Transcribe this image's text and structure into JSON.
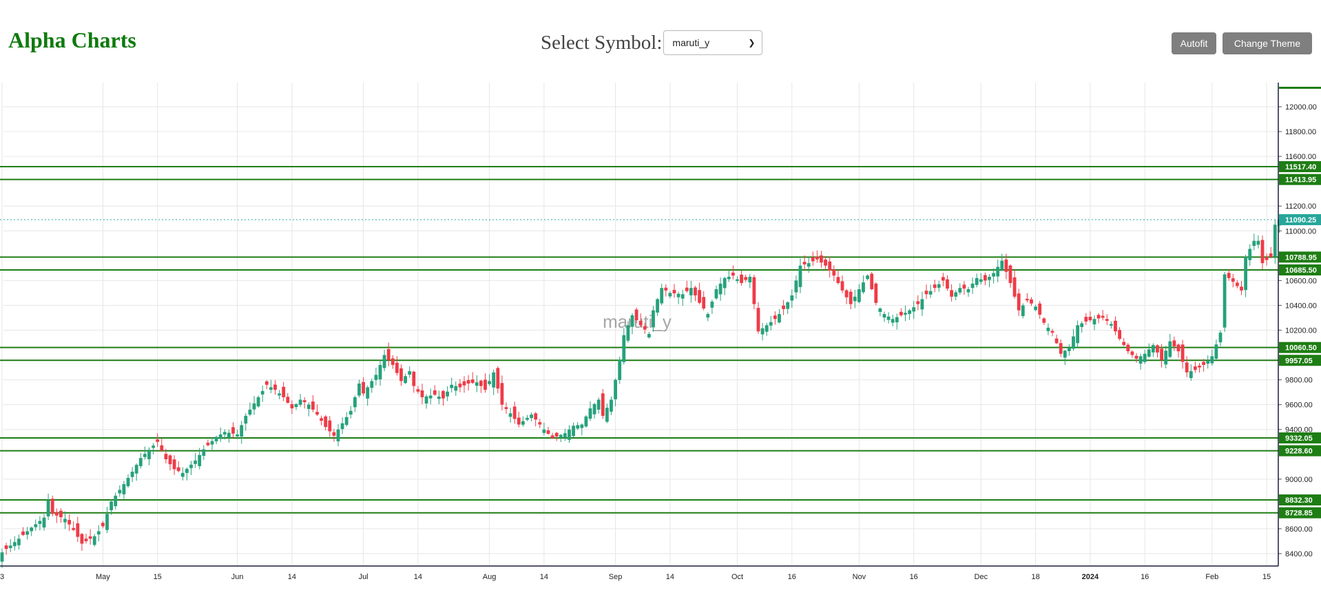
{
  "header": {
    "title": "Alpha Charts",
    "select_label": "Select Symbol:",
    "selected_symbol": "maruti_y",
    "autofit_label": "Autofit",
    "theme_label": "Change Theme"
  },
  "colors": {
    "up": "#26a17b",
    "down": "#ef3b47",
    "level_line": "#1e7d14",
    "last_price": "#26a69a",
    "title": "#0e7a0d"
  },
  "chart_data": {
    "type": "candlestick",
    "watermark": "maruti_y",
    "y_range": [
      8300,
      12150
    ],
    "y_ticks": [
      {
        "value": 12000,
        "label": "12000.00"
      },
      {
        "value": 11800,
        "label": "11800.00"
      },
      {
        "value": 11600,
        "label": "11600.00"
      },
      {
        "value": 11200,
        "label": "11200.00"
      },
      {
        "value": 11000,
        "label": "11000.00"
      },
      {
        "value": 10600,
        "label": "10600.00"
      },
      {
        "value": 10400,
        "label": "10400.00"
      },
      {
        "value": 10200,
        "label": "10200.00"
      },
      {
        "value": 9800,
        "label": "9800.00"
      },
      {
        "value": 9600,
        "label": "9600.00"
      },
      {
        "value": 9400,
        "label": "9400.00"
      },
      {
        "value": 9000,
        "label": "9000.00"
      },
      {
        "value": 8600,
        "label": "8600.00"
      },
      {
        "value": 8400,
        "label": "8400.00"
      }
    ],
    "x_ticks": [
      {
        "index": 0,
        "label": "3",
        "bold": false
      },
      {
        "index": 24,
        "label": "May",
        "bold": false
      },
      {
        "index": 37,
        "label": "15",
        "bold": false
      },
      {
        "index": 56,
        "label": "Jun",
        "bold": false
      },
      {
        "index": 69,
        "label": "14",
        "bold": false
      },
      {
        "index": 86,
        "label": "Jul",
        "bold": false
      },
      {
        "index": 99,
        "label": "14",
        "bold": false
      },
      {
        "index": 116,
        "label": "Aug",
        "bold": false
      },
      {
        "index": 129,
        "label": "14",
        "bold": false
      },
      {
        "index": 146,
        "label": "Sep",
        "bold": false
      },
      {
        "index": 159,
        "label": "14",
        "bold": false
      },
      {
        "index": 175,
        "label": "Oct",
        "bold": false
      },
      {
        "index": 188,
        "label": "16",
        "bold": false
      },
      {
        "index": 204,
        "label": "Nov",
        "bold": false
      },
      {
        "index": 217,
        "label": "16",
        "bold": false
      },
      {
        "index": 233,
        "label": "Dec",
        "bold": false
      },
      {
        "index": 246,
        "label": "18",
        "bold": false
      },
      {
        "index": 259,
        "label": "2024",
        "bold": true
      },
      {
        "index": 272,
        "label": "16",
        "bold": false
      },
      {
        "index": 288,
        "label": "Feb",
        "bold": false
      },
      {
        "index": 301,
        "label": "15",
        "bold": false
      }
    ],
    "level_lines": [
      11517.4,
      11413.95,
      10788.95,
      10685.5,
      10060.5,
      9957.05,
      9332.05,
      9228.6,
      8832.3,
      8728.85
    ],
    "level_labels": [
      "11517.40",
      "11413.95",
      "10788.95",
      "10685.50",
      "10060.50",
      "9957.05",
      "9332.05",
      "9228.60",
      "8832.30",
      "8728.85"
    ],
    "last_price": {
      "value": 11090.25,
      "label": "11090.25"
    },
    "keypoints": [
      [
        0,
        8410
      ],
      [
        4,
        8520
      ],
      [
        7,
        8610
      ],
      [
        10,
        8690
      ],
      [
        11,
        8830
      ],
      [
        12,
        8720
      ],
      [
        15,
        8680
      ],
      [
        17,
        8590
      ],
      [
        19,
        8480
      ],
      [
        22,
        8540
      ],
      [
        24,
        8620
      ],
      [
        26,
        8820
      ],
      [
        29,
        8960
      ],
      [
        31,
        9060
      ],
      [
        33,
        9170
      ],
      [
        36,
        9270
      ],
      [
        37,
        9300
      ],
      [
        39,
        9160
      ],
      [
        41,
        9080
      ],
      [
        43,
        9050
      ],
      [
        46,
        9150
      ],
      [
        48,
        9240
      ],
      [
        51,
        9340
      ],
      [
        53,
        9380
      ],
      [
        56,
        9360
      ],
      [
        58,
        9510
      ],
      [
        61,
        9660
      ],
      [
        63,
        9760
      ],
      [
        65,
        9720
      ],
      [
        67,
        9660
      ],
      [
        69,
        9570
      ],
      [
        71,
        9640
      ],
      [
        73,
        9600
      ],
      [
        75,
        9520
      ],
      [
        77,
        9420
      ],
      [
        79,
        9350
      ],
      [
        81,
        9450
      ],
      [
        83,
        9550
      ],
      [
        85,
        9770
      ],
      [
        86,
        9690
      ],
      [
        89,
        9840
      ],
      [
        91,
        10000
      ],
      [
        93,
        9920
      ],
      [
        95,
        9790
      ],
      [
        97,
        9870
      ],
      [
        98,
        9750
      ],
      [
        100,
        9660
      ],
      [
        103,
        9680
      ],
      [
        105,
        9650
      ],
      [
        107,
        9760
      ],
      [
        109,
        9740
      ],
      [
        111,
        9770
      ],
      [
        113,
        9780
      ],
      [
        115,
        9720
      ],
      [
        117,
        9860
      ],
      [
        119,
        9600
      ],
      [
        121,
        9530
      ],
      [
        123,
        9440
      ],
      [
        126,
        9520
      ],
      [
        129,
        9400
      ],
      [
        131,
        9330
      ],
      [
        134,
        9370
      ],
      [
        136,
        9430
      ],
      [
        138,
        9440
      ],
      [
        140,
        9570
      ],
      [
        142,
        9640
      ],
      [
        143,
        9510
      ],
      [
        145,
        9640
      ],
      [
        147,
        9960
      ],
      [
        148,
        10160
      ],
      [
        150,
        10320
      ],
      [
        152,
        10240
      ],
      [
        154,
        10170
      ],
      [
        155,
        10360
      ],
      [
        157,
        10540
      ],
      [
        159,
        10500
      ],
      [
        162,
        10490
      ],
      [
        164,
        10540
      ],
      [
        166,
        10420
      ],
      [
        168,
        10330
      ],
      [
        170,
        10530
      ],
      [
        172,
        10620
      ],
      [
        174,
        10640
      ],
      [
        176,
        10580
      ],
      [
        178,
        10630
      ],
      [
        180,
        10190
      ],
      [
        182,
        10240
      ],
      [
        184,
        10290
      ],
      [
        186,
        10370
      ],
      [
        188,
        10480
      ],
      [
        190,
        10720
      ],
      [
        192,
        10740
      ],
      [
        194,
        10770
      ],
      [
        196,
        10720
      ],
      [
        198,
        10640
      ],
      [
        200,
        10520
      ],
      [
        202,
        10410
      ],
      [
        204,
        10530
      ],
      [
        206,
        10640
      ],
      [
        208,
        10420
      ],
      [
        210,
        10330
      ],
      [
        212,
        10290
      ],
      [
        214,
        10320
      ],
      [
        216,
        10360
      ],
      [
        218,
        10410
      ],
      [
        220,
        10490
      ],
      [
        222,
        10540
      ],
      [
        224,
        10600
      ],
      [
        226,
        10470
      ],
      [
        228,
        10540
      ],
      [
        230,
        10530
      ],
      [
        232,
        10620
      ],
      [
        234,
        10600
      ],
      [
        236,
        10660
      ],
      [
        238,
        10760
      ],
      [
        240,
        10580
      ],
      [
        242,
        10360
      ],
      [
        244,
        10440
      ],
      [
        246,
        10390
      ],
      [
        248,
        10260
      ],
      [
        250,
        10180
      ],
      [
        252,
        10010
      ],
      [
        254,
        10060
      ],
      [
        256,
        10240
      ],
      [
        258,
        10270
      ],
      [
        260,
        10290
      ],
      [
        262,
        10300
      ],
      [
        264,
        10250
      ],
      [
        266,
        10130
      ],
      [
        268,
        10030
      ],
      [
        270,
        9970
      ],
      [
        272,
        10010
      ],
      [
        274,
        10080
      ],
      [
        276,
        9960
      ],
      [
        278,
        10110
      ],
      [
        280,
        10030
      ],
      [
        282,
        9860
      ],
      [
        284,
        9880
      ],
      [
        286,
        9920
      ],
      [
        288,
        9990
      ],
      [
        290,
        10180
      ],
      [
        291,
        10650
      ],
      [
        293,
        10590
      ],
      [
        295,
        10520
      ],
      [
        296,
        10790
      ],
      [
        298,
        10920
      ],
      [
        299,
        10920
      ],
      [
        300,
        10740
      ],
      [
        302,
        10790
      ],
      [
        303,
        11050
      ],
      [
        304,
        11090.25
      ]
    ]
  }
}
